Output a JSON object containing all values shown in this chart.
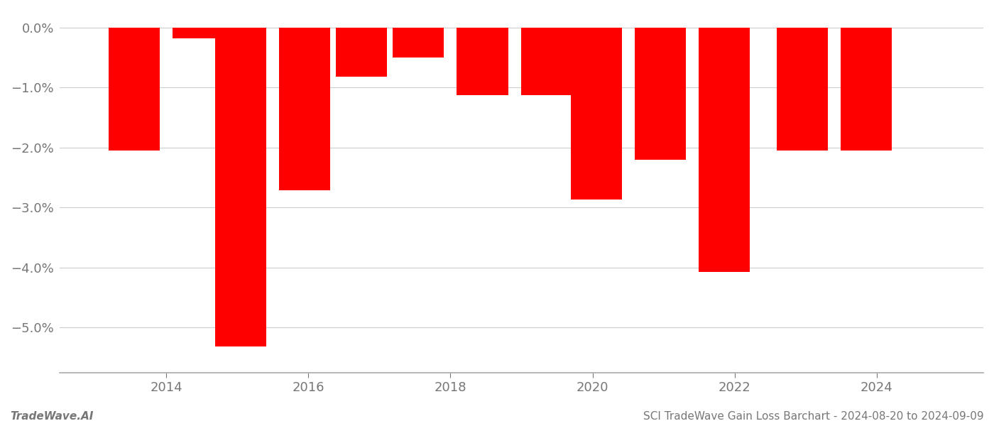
{
  "bars": [
    {
      "x": 2013.55,
      "value": -2.05
    },
    {
      "x": 2014.45,
      "value": -0.18
    },
    {
      "x": 2015.05,
      "value": -5.32
    },
    {
      "x": 2015.95,
      "value": -2.72
    },
    {
      "x": 2016.75,
      "value": -0.82
    },
    {
      "x": 2017.55,
      "value": -0.5
    },
    {
      "x": 2018.45,
      "value": -1.13
    },
    {
      "x": 2019.35,
      "value": -1.13
    },
    {
      "x": 2020.05,
      "value": -2.87
    },
    {
      "x": 2020.95,
      "value": -2.2
    },
    {
      "x": 2021.85,
      "value": -4.07
    },
    {
      "x": 2022.95,
      "value": -2.05
    },
    {
      "x": 2023.85,
      "value": -2.05
    }
  ],
  "bar_color": "#ff0000",
  "bar_width": 0.72,
  "ylim": [
    -5.75,
    0.28
  ],
  "yticks": [
    0.0,
    -1.0,
    -2.0,
    -3.0,
    -4.0,
    -5.0
  ],
  "ytick_labels": [
    "0.0%",
    "−1.0%",
    "−2.0%",
    "−3.0%",
    "−4.0%",
    "−5.0%"
  ],
  "xlim": [
    2012.5,
    2025.5
  ],
  "xticks": [
    2014,
    2016,
    2018,
    2020,
    2022,
    2024
  ],
  "footer_left": "TradeWave.AI",
  "footer_right": "SCI TradeWave Gain Loss Barchart - 2024-08-20 to 2024-09-09",
  "background_color": "#ffffff",
  "grid_color": "#cccccc",
  "text_color": "#777777",
  "tick_label_fontsize": 13,
  "footer_fontsize": 11
}
